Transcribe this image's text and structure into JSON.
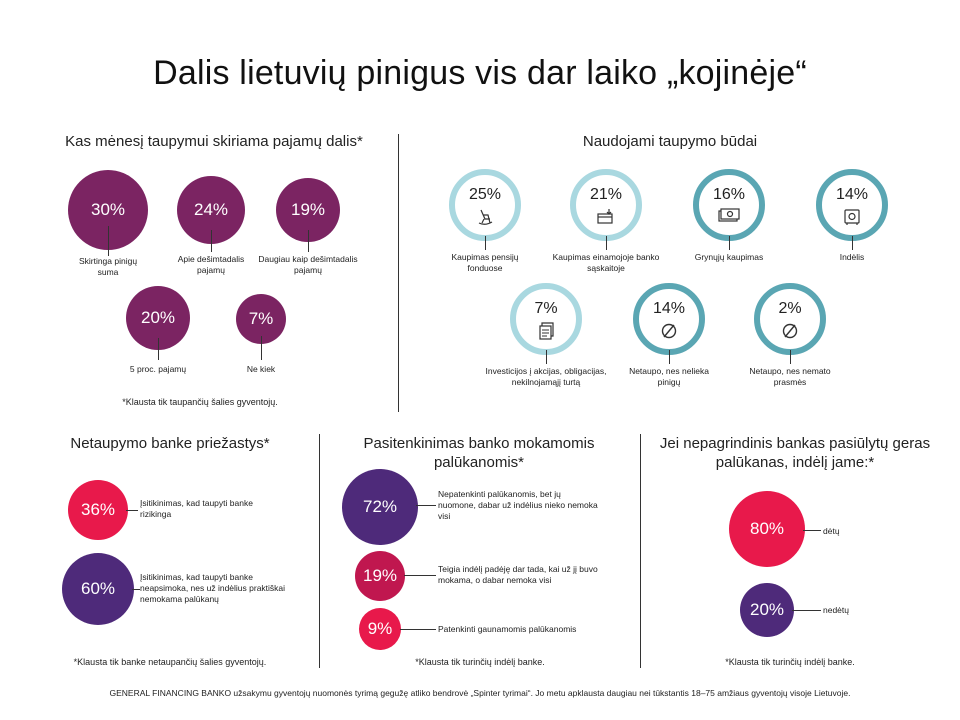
{
  "title": "Dalis lietuvių pinigus vis dar laiko „kojinėje“",
  "colors": {
    "plum": "#7b2462",
    "purple": "#4e2a7a",
    "red": "#e8194b",
    "crimson": "#c0174f",
    "ring_light": "#a9d8e0",
    "ring_dark": "#5aa6b3"
  },
  "chart_data": [
    {
      "type": "bubble",
      "title": "Kas mėnesį taupymui skiriama pajamų dalis*",
      "items": [
        {
          "label": "Skirtinga pinigų suma",
          "value": 30,
          "text": "30%"
        },
        {
          "label": "Apie dešimtadalis pajamų",
          "value": 24,
          "text": "24%"
        },
        {
          "label": "Daugiau kaip dešimtadalis pajamų",
          "value": 19,
          "text": "19%"
        },
        {
          "label": "5 proc. pajamų",
          "value": 20,
          "text": "20%"
        },
        {
          "label": "Ne kiek",
          "value": 7,
          "text": "7%"
        }
      ],
      "note": "*Klausta tik taupančių šalies gyventojų."
    },
    {
      "type": "bubble",
      "title": "Naudojami taupymo būdai",
      "items": [
        {
          "label": "Kaupimas pensijų fonduose",
          "value": 25,
          "text": "25%",
          "icon": "rocking-chair-icon"
        },
        {
          "label": "Kaupimas einamojoje banko sąskaitoje",
          "value": 21,
          "text": "21%",
          "icon": "card-deposit-icon"
        },
        {
          "label": "Grynųjų kaupimas",
          "value": 16,
          "text": "16%",
          "icon": "cash-icon"
        },
        {
          "label": "Indėlis",
          "value": 14,
          "text": "14%",
          "icon": "safe-icon"
        },
        {
          "label": "Investicijos į akcijas, obligacijas, nekilnojamąjį turtą",
          "value": 7,
          "text": "7%",
          "icon": "documents-icon"
        },
        {
          "label": "Netaupo, nes nelieka pinigų",
          "value": 14,
          "text": "14%",
          "icon": "empty-set-icon"
        },
        {
          "label": "Netaupo, nes nemato prasmės",
          "value": 2,
          "text": "2%",
          "icon": "empty-set-icon"
        }
      ]
    },
    {
      "type": "bubble",
      "title": "Netaupymo banke priežastys*",
      "items": [
        {
          "label": "Įsitikinimas, kad taupyti banke rizikinga",
          "value": 36,
          "text": "36%"
        },
        {
          "label": "Įsitikinimas, kad taupyti banke neapsimoka, nes už indėlius praktiškai nemokama palūkanų",
          "value": 60,
          "text": "60%"
        }
      ],
      "note": "*Klausta tik banke netaupančių šalies gyventojų."
    },
    {
      "type": "bubble",
      "title": "Pasitenkinimas banko mokamomis palūkanomis*",
      "items": [
        {
          "label": "Nepatenkinti palūkanomis, bet jų nuomone, dabar už indėlius nieko nemoka visi",
          "value": 72,
          "text": "72%"
        },
        {
          "label": "Teigia indėlį padėję dar tada, kai už jį buvo mokama, o dabar nemoka visi",
          "value": 19,
          "text": "19%"
        },
        {
          "label": "Patenkinti gaunamomis palūkanomis",
          "value": 9,
          "text": "9%"
        }
      ],
      "note": "*Klausta tik turinčių indėlį banke."
    },
    {
      "type": "bubble",
      "title": "Jei nepagrindinis bankas pasiūlytų geras palūkanas, indėlį jame:*",
      "items": [
        {
          "label": "dėtų",
          "value": 80,
          "text": "80%"
        },
        {
          "label": "nedėtų",
          "value": 20,
          "text": "20%"
        }
      ],
      "note": "*Klausta tik turinčių indėlį banke."
    }
  ],
  "footer": "GENERAL FINANCING BANKO užsakymu gyventojų nuomonės tyrimą gegužę atliko bendrovė „Spinter tyrimai“. Jo metu apklausta daugiau nei tūkstantis 18–75 amžiaus gyventojų visoje Lietuvoje."
}
